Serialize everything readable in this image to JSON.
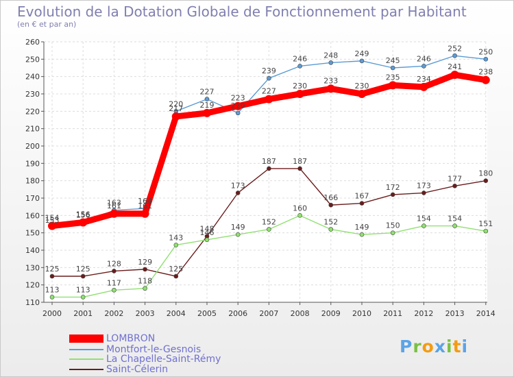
{
  "header": {
    "title": "Evolution de la Dotation Globale de Fonctionnement par Habitant",
    "subtitle": "(en € et par an)"
  },
  "chart_data": {
    "type": "line",
    "title": "Evolution de la Dotation Globale de Fonctionnement par Habitant",
    "subtitle": "(en € et par an)",
    "xlabel": "",
    "ylabel": "",
    "ylim": [
      110,
      260
    ],
    "yticks": [
      110,
      120,
      130,
      140,
      150,
      160,
      170,
      180,
      190,
      200,
      210,
      220,
      230,
      240,
      250,
      260
    ],
    "grid": true,
    "legend_position": "bottom-left",
    "x": [
      "2000",
      "2001",
      "2002",
      "2003",
      "2004",
      "2005",
      "2006",
      "2007",
      "2008",
      "2009",
      "2010",
      "2011",
      "2012",
      "2013",
      "2014"
    ],
    "series": [
      {
        "name": "LOMBRON",
        "color": "#ff0000",
        "values": [
          154,
          156,
          161,
          161,
          217,
          219,
          223,
          227,
          230,
          233,
          230,
          235,
          234,
          241,
          238
        ]
      },
      {
        "name": "Montfort-le-Gesnois",
        "color": "#5b9bd5",
        "values": [
          153,
          156,
          163,
          164,
          220,
          227,
          219,
          239,
          246,
          248,
          249,
          245,
          246,
          252,
          250
        ]
      },
      {
        "name": "La Chapelle-Saint-Rémy",
        "color": "#90e070",
        "values": [
          113,
          113,
          117,
          118,
          143,
          146,
          149,
          152,
          160,
          152,
          149,
          150,
          154,
          154,
          151
        ]
      },
      {
        "name": "Saint-Célerin",
        "color": "#6b1c1c",
        "values": [
          125,
          125,
          128,
          129,
          125,
          148,
          173,
          187,
          187,
          166,
          167,
          172,
          173,
          177,
          180
        ]
      }
    ]
  },
  "logo": {
    "letters": [
      "P",
      "r",
      "o",
      "x",
      "i",
      "t",
      "i"
    ],
    "colors": [
      "#5ba4e6",
      "#7ac143",
      "#f39c12",
      "#5ba4e6",
      "#7ac143",
      "#f39c12",
      "#5ba4e6"
    ]
  }
}
